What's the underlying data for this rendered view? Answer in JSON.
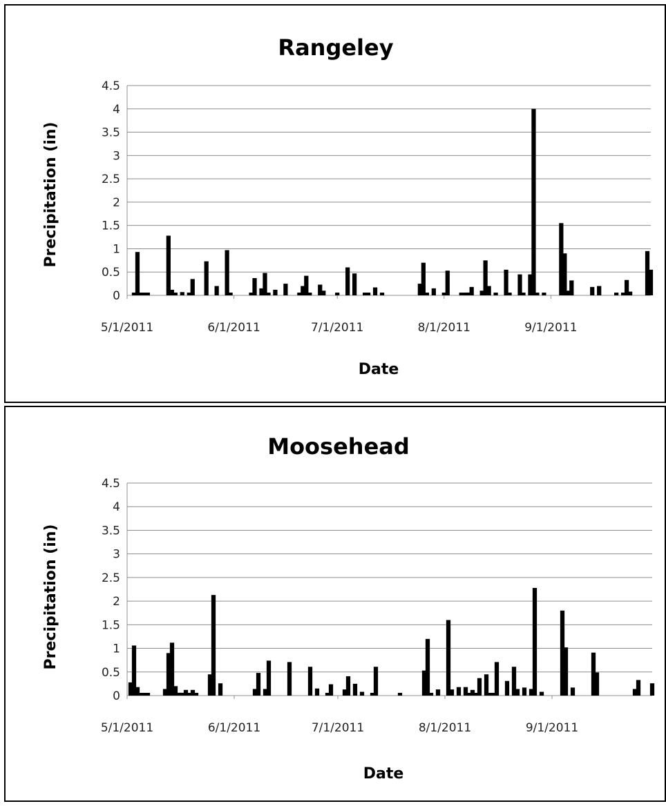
{
  "chart_data": [
    {
      "type": "bar",
      "title": "Rangeley",
      "xlabel": "Date",
      "ylabel": "Precipitation (in)",
      "ylim": [
        0,
        4.5
      ],
      "yticks": [
        "0",
        "0.5",
        "1",
        "1.5",
        "2",
        "2.5",
        "3",
        "3.5",
        "4",
        "4.5"
      ],
      "xticks": [
        "5/1/2011",
        "6/1/2011",
        "7/1/2011",
        "8/1/2011",
        "9/1/2011"
      ],
      "grid": true,
      "x": [
        "2011-05-03",
        "2011-05-04",
        "2011-05-05",
        "2011-05-06",
        "2011-05-07",
        "2011-05-13",
        "2011-05-14",
        "2011-05-15",
        "2011-05-17",
        "2011-05-19",
        "2011-05-20",
        "2011-05-24",
        "2011-05-27",
        "2011-05-30",
        "2011-05-31",
        "2011-06-06",
        "2011-06-07",
        "2011-06-09",
        "2011-06-10",
        "2011-06-11",
        "2011-06-13",
        "2011-06-16",
        "2011-06-20",
        "2011-06-21",
        "2011-06-22",
        "2011-06-23",
        "2011-06-26",
        "2011-06-27",
        "2011-07-01",
        "2011-07-04",
        "2011-07-06",
        "2011-07-09",
        "2011-07-10",
        "2011-07-12",
        "2011-07-14",
        "2011-07-25",
        "2011-07-26",
        "2011-07-27",
        "2011-07-29",
        "2011-08-01",
        "2011-08-02",
        "2011-08-06",
        "2011-08-07",
        "2011-08-08",
        "2011-08-09",
        "2011-08-12",
        "2011-08-13",
        "2011-08-14",
        "2011-08-16",
        "2011-08-19",
        "2011-08-20",
        "2011-08-23",
        "2011-08-24",
        "2011-08-26",
        "2011-08-27",
        "2011-08-28",
        "2011-08-30",
        "2011-09-04",
        "2011-09-05",
        "2011-09-06",
        "2011-09-07",
        "2011-09-13",
        "2011-09-15",
        "2011-09-20",
        "2011-09-22",
        "2011-09-23",
        "2011-09-24",
        "2011-09-29",
        "2011-09-30"
      ],
      "values": [
        0.03,
        0.93,
        0.03,
        0.03,
        0.03,
        1.28,
        0.12,
        0.04,
        0.07,
        0.03,
        0.35,
        0.73,
        0.2,
        0.97,
        0.03,
        0.03,
        0.37,
        0.15,
        0.48,
        0.05,
        0.12,
        0.25,
        0.03,
        0.2,
        0.42,
        0.03,
        0.23,
        0.1,
        0.04,
        0.6,
        0.47,
        0.03,
        0.03,
        0.17,
        0.05,
        0.25,
        0.7,
        0.03,
        0.15,
        0.03,
        0.53,
        0.03,
        0.03,
        0.06,
        0.18,
        0.1,
        0.75,
        0.2,
        0.03,
        0.55,
        0.03,
        0.45,
        0.03,
        0.45,
        4.0,
        0.03,
        0.03,
        1.55,
        0.9,
        0.1,
        0.32,
        0.18,
        0.2,
        0.05,
        0.05,
        0.33,
        0.08,
        0.95,
        0.55
      ]
    },
    {
      "type": "bar",
      "title": "Moosehead",
      "xlabel": "Date",
      "ylabel": "Precipitation (in)",
      "ylim": [
        0,
        4.5
      ],
      "yticks": [
        "0",
        "0.5",
        "1",
        "1.5",
        "2",
        "2.5",
        "3",
        "3.5",
        "4",
        "4.5"
      ],
      "xticks": [
        "5/1/2011",
        "6/1/2011",
        "7/1/2011",
        "8/1/2011",
        "9/1/2011"
      ],
      "grid": true,
      "x": [
        "2011-05-02",
        "2011-05-03",
        "2011-05-04",
        "2011-05-05",
        "2011-05-06",
        "2011-05-07",
        "2011-05-12",
        "2011-05-13",
        "2011-05-14",
        "2011-05-15",
        "2011-05-16",
        "2011-05-17",
        "2011-05-18",
        "2011-05-19",
        "2011-05-20",
        "2011-05-21",
        "2011-05-25",
        "2011-05-26",
        "2011-05-28",
        "2011-06-07",
        "2011-06-08",
        "2011-06-10",
        "2011-06-11",
        "2011-06-17",
        "2011-06-23",
        "2011-06-25",
        "2011-06-28",
        "2011-06-29",
        "2011-07-03",
        "2011-07-04",
        "2011-07-06",
        "2011-07-08",
        "2011-07-11",
        "2011-07-12",
        "2011-07-19",
        "2011-07-26",
        "2011-07-27",
        "2011-07-28",
        "2011-07-30",
        "2011-08-02",
        "2011-08-03",
        "2011-08-05",
        "2011-08-07",
        "2011-08-08",
        "2011-08-09",
        "2011-08-10",
        "2011-08-11",
        "2011-08-13",
        "2011-08-14",
        "2011-08-15",
        "2011-08-16",
        "2011-08-19",
        "2011-08-21",
        "2011-08-22",
        "2011-08-24",
        "2011-08-26",
        "2011-08-27",
        "2011-08-29",
        "2011-09-04",
        "2011-09-05",
        "2011-09-07",
        "2011-09-13",
        "2011-09-14",
        "2011-09-25",
        "2011-09-26",
        "2011-09-30"
      ],
      "values": [
        0.28,
        1.06,
        0.18,
        0.04,
        0.04,
        0.04,
        0.14,
        0.9,
        1.12,
        0.2,
        0.06,
        0.06,
        0.12,
        0.04,
        0.12,
        0.04,
        0.45,
        2.13,
        0.26,
        0.14,
        0.48,
        0.14,
        0.74,
        0.71,
        0.61,
        0.15,
        0.04,
        0.24,
        0.13,
        0.41,
        0.25,
        0.08,
        0.04,
        0.61,
        0.04,
        0.53,
        1.2,
        0.04,
        0.13,
        1.6,
        0.13,
        0.18,
        0.18,
        0.04,
        0.12,
        0.04,
        0.37,
        0.45,
        0.04,
        0.04,
        0.71,
        0.31,
        0.61,
        0.14,
        0.17,
        0.14,
        2.28,
        0.08,
        1.8,
        1.02,
        0.17,
        0.91,
        0.49,
        0.14,
        0.33,
        0.26
      ]
    }
  ]
}
